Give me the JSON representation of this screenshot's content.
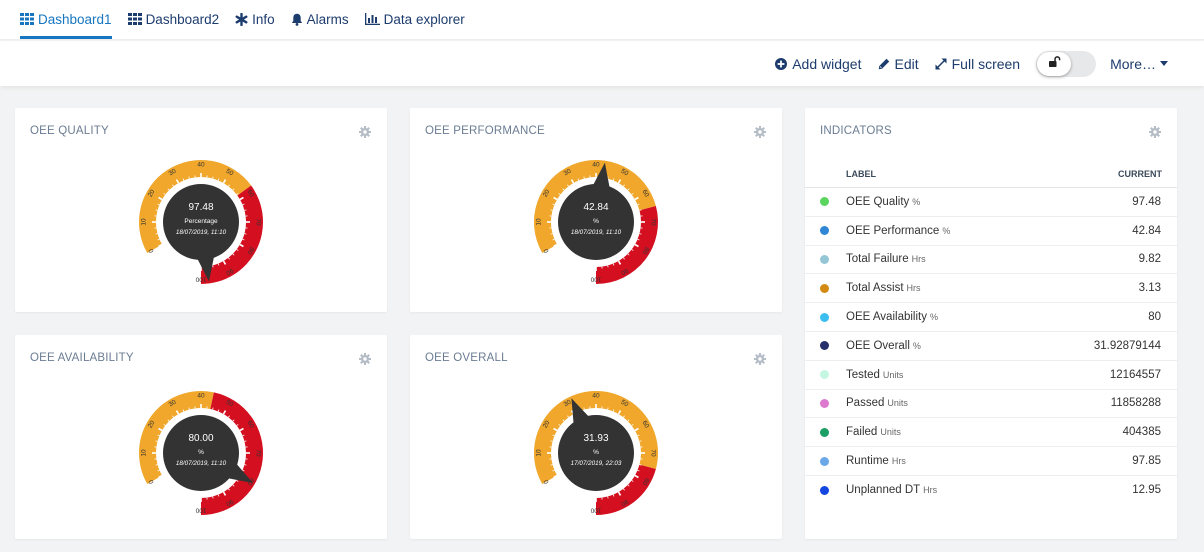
{
  "tabs": [
    {
      "label": "Dashboard1",
      "icon": "grid-icon",
      "active": true
    },
    {
      "label": "Dashboard2",
      "icon": "grid-icon",
      "active": false
    },
    {
      "label": "Info",
      "icon": "asterisk-icon",
      "active": false
    },
    {
      "label": "Alarms",
      "icon": "bell-icon",
      "active": false
    },
    {
      "label": "Data explorer",
      "icon": "bar-chart-icon",
      "active": false
    }
  ],
  "toolbar": {
    "add_widget": "Add widget",
    "edit": "Edit",
    "full_screen": "Full screen",
    "more": "More…"
  },
  "colors": {
    "accent": "#1776bf",
    "gauge_orange": "#f0a72b",
    "gauge_red": "#d40f20",
    "gauge_track": "#f0f0f0",
    "gauge_center": "#333333"
  },
  "widgets": [
    {
      "title": "OEE QUALITY",
      "value": "97.48",
      "unit": "Percentage",
      "date": "18/07/2019, 11:10",
      "fraction": 0.9748,
      "red_start": 0.58
    },
    {
      "title": "OEE PERFORMANCE",
      "value": "42.84",
      "unit": "%",
      "date": "18/07/2019, 11:10",
      "fraction": 0.4284,
      "red_start": 0.65
    },
    {
      "title": "OEE AVAILABILITY",
      "value": "80.00",
      "unit": "%",
      "date": "18/07/2019, 11:10",
      "fraction": 0.8,
      "red_start": 0.44
    },
    {
      "title": "OEE OVERALL",
      "value": "31.93",
      "unit": "%",
      "date": "17/07/2019, 22:03",
      "fraction": 0.3193,
      "red_start": 0.75
    }
  ],
  "gauge_ticks": [
    "0",
    "10",
    "20",
    "30",
    "40",
    "50",
    "60",
    "70",
    "80",
    "90",
    "100"
  ],
  "indicators": {
    "title": "INDICATORS",
    "col_label": "LABEL",
    "col_current": "CURRENT",
    "rows": [
      {
        "label": "OEE Quality",
        "unit": "%",
        "value": "97.48",
        "color": "#5ad55e"
      },
      {
        "label": "OEE Performance",
        "unit": "%",
        "value": "42.84",
        "color": "#2e86d4"
      },
      {
        "label": "Total Failure",
        "unit": "Hrs",
        "value": "9.82",
        "color": "#95c6d6"
      },
      {
        "label": "Total Assist",
        "unit": "Hrs",
        "value": "3.13",
        "color": "#d38a12"
      },
      {
        "label": "OEE Availability",
        "unit": "%",
        "value": "80",
        "color": "#3bbdf0"
      },
      {
        "label": "OEE Overall",
        "unit": "%",
        "value": "31.92879144",
        "color": "#262e6c"
      },
      {
        "label": "Tested",
        "unit": "Units",
        "value": "12164557",
        "color": "#c4f7e2"
      },
      {
        "label": "Passed",
        "unit": "Units",
        "value": "11858288",
        "color": "#dd7ad0"
      },
      {
        "label": "Failed",
        "unit": "Units",
        "value": "404385",
        "color": "#1b9e64"
      },
      {
        "label": "Runtime",
        "unit": "Hrs",
        "value": "97.85",
        "color": "#6aa8e8"
      },
      {
        "label": "Unplanned DT",
        "unit": "Hrs",
        "value": "12.95",
        "color": "#1446e0"
      }
    ]
  }
}
